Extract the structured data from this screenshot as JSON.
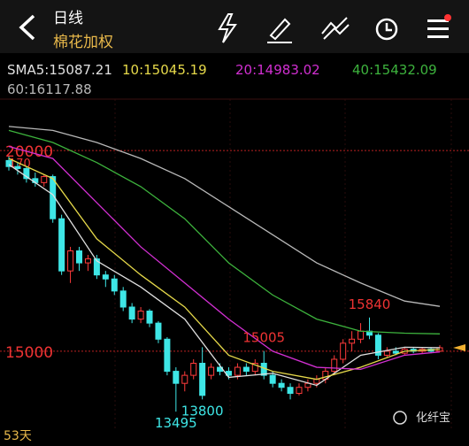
{
  "header": {
    "title": "日线",
    "subtitle": "棉花加权"
  },
  "watermark": "化纤宝",
  "chart_data": {
    "type": "candlestick",
    "open": [
      19750,
      19600,
      19550,
      19300,
      19200,
      19350,
      18300,
      17000,
      17500,
      17200,
      17300,
      16900,
      16800,
      16500,
      16100,
      15800,
      16000,
      15700,
      15300,
      14500,
      14200,
      14400,
      14700,
      14400,
      14600,
      14500,
      14400,
      14600,
      14500,
      14700,
      14400,
      14200,
      14100,
      13950,
      14100,
      14200,
      14300,
      14500,
      14800,
      15200,
      15300,
      15500,
      15400,
      14900,
      15000,
      14950,
      15050,
      15000,
      15050,
      15000
    ],
    "high": [
      19850,
      19700,
      19600,
      19450,
      19400,
      19400,
      18400,
      17600,
      17600,
      17400,
      17400,
      17000,
      16900,
      16600,
      16200,
      16100,
      16050,
      15750,
      15350,
      14600,
      14500,
      14800,
      15100,
      14700,
      14700,
      14600,
      14700,
      14700,
      14800,
      15005,
      14500,
      14300,
      14200,
      14200,
      14300,
      14400,
      14600,
      14900,
      15300,
      15500,
      15700,
      15840,
      15450,
      15100,
      15100,
      15100,
      15100,
      15100,
      15100,
      15150
    ],
    "low": [
      19500,
      19400,
      19200,
      19100,
      19100,
      18200,
      16900,
      16700,
      17000,
      17000,
      16800,
      16600,
      16400,
      16000,
      15700,
      15700,
      15600,
      15200,
      14400,
      13495,
      14000,
      14300,
      13800,
      14300,
      14400,
      14300,
      14300,
      14400,
      14400,
      14300,
      14100,
      14000,
      13800,
      13900,
      14000,
      14100,
      14200,
      14400,
      14700,
      15000,
      15200,
      15300,
      14800,
      14850,
      14900,
      14900,
      14950,
      14950,
      14950,
      14980
    ],
    "close": [
      19600,
      19550,
      19300,
      19200,
      19350,
      18300,
      17000,
      17500,
      17200,
      17300,
      16900,
      16800,
      16500,
      16100,
      15800,
      16000,
      15700,
      15300,
      14500,
      14200,
      14400,
      14700,
      13900,
      14600,
      14500,
      14400,
      14600,
      14500,
      14700,
      14400,
      14200,
      14100,
      13950,
      14100,
      14200,
      14300,
      14500,
      14800,
      15200,
      15300,
      15500,
      15400,
      14900,
      15000,
      14950,
      15050,
      15000,
      15050,
      15000,
      15087
    ],
    "up_color": "#ff3b3b",
    "down_color": "#3ee6e6",
    "ma_x": [
      0,
      5,
      10,
      15,
      20,
      25,
      30,
      35,
      40,
      45,
      49
    ],
    "series": [
      {
        "name": "SMA5:15087.21",
        "color": "#e0e0e0",
        "values": [
          19650,
          18900,
          17250,
          16600,
          15800,
          14350,
          14450,
          14150,
          14900,
          15100,
          15087.21
        ]
      },
      {
        "name": "10:15045.19",
        "color": "#e6d94a",
        "values": [
          19800,
          19300,
          17800,
          16900,
          16100,
          14900,
          14500,
          14300,
          14600,
          15000,
          15045.19
        ]
      },
      {
        "name": "20:14983.02",
        "color": "#d12fd1",
        "values": [
          20100,
          19800,
          18700,
          17600,
          16700,
          15800,
          15000,
          14600,
          14550,
          14900,
          14983.02
        ]
      },
      {
        "name": "40:15432.09",
        "color": "#3db33d",
        "values": [
          20500,
          20200,
          19700,
          19100,
          18300,
          17200,
          16400,
          15800,
          15500,
          15450,
          15432.09
        ]
      },
      {
        "name": "60:16117.88",
        "color": "#b8b8b8",
        "values": [
          20600,
          20500,
          20200,
          19800,
          19300,
          18600,
          17900,
          17200,
          16700,
          16250,
          16117.88
        ]
      }
    ],
    "ylim": [
      13080,
      21280
    ],
    "yticks": [
      15000,
      20000
    ],
    "top_label": "170",
    "annotations": [
      15840,
      15005,
      13800,
      13495
    ],
    "period_label": "53天",
    "grid": true
  }
}
